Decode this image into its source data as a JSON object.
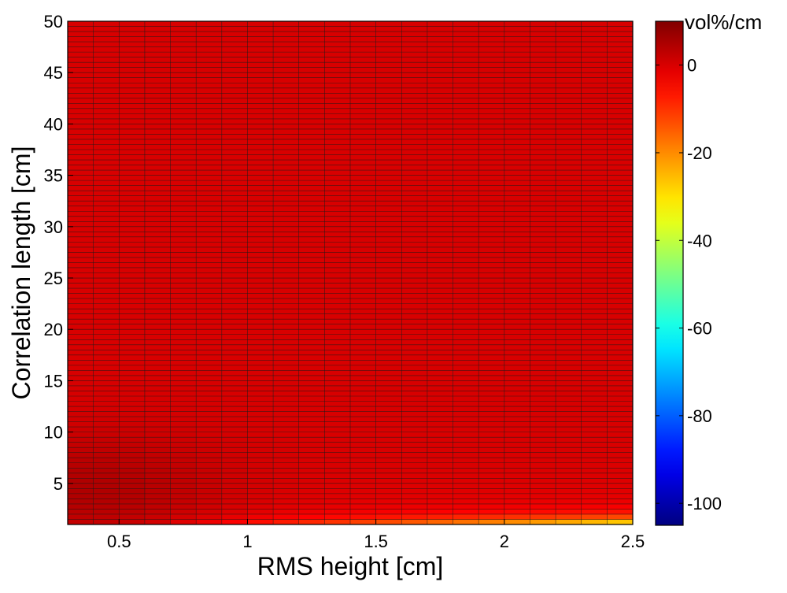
{
  "chart_data": {
    "type": "heatmap",
    "xlabel": "RMS height [cm]",
    "ylabel": "Correlation length [cm]",
    "xlim": [
      0.3,
      2.5
    ],
    "ylim": [
      1,
      50
    ],
    "x_ticks": [
      0.5,
      1,
      1.5,
      2,
      2.5
    ],
    "y_ticks": [
      5,
      10,
      15,
      20,
      25,
      30,
      35,
      40,
      45,
      50
    ],
    "x_cells": 22,
    "y_cells": 98,
    "colorbar": {
      "title": "vol%/cm",
      "ticks": [
        0,
        -20,
        -40,
        -60,
        -80,
        -100
      ],
      "range": [
        -105,
        10
      ],
      "colormap": "jet"
    },
    "grid": true,
    "value_summary": {
      "typical": 0,
      "max_near": {
        "x": 0.4,
        "y": 4,
        "value": 5
      },
      "min_near": {
        "x": 2.5,
        "y": 1,
        "value": -35
      },
      "description_units": "vol%/cm"
    }
  }
}
